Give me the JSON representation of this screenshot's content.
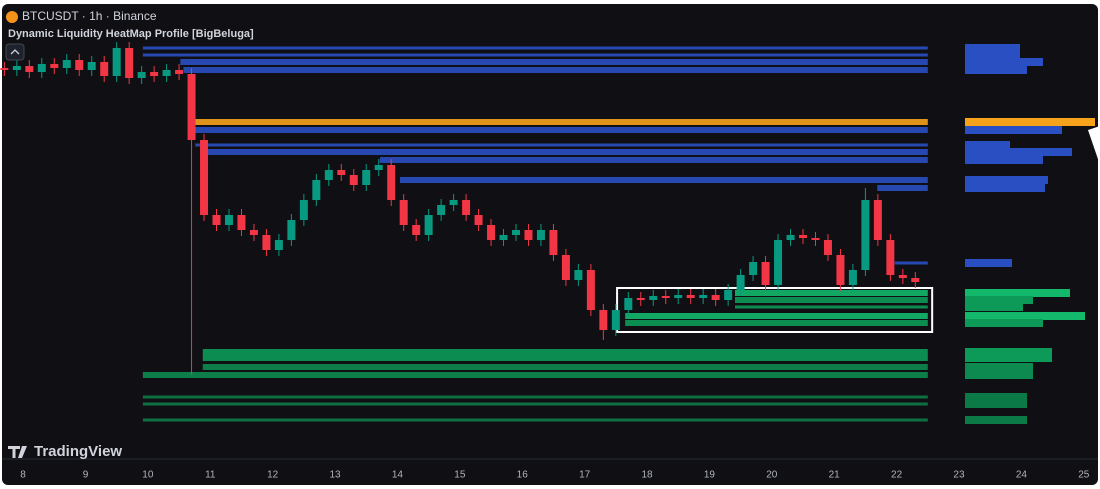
{
  "header": {
    "symbol": "BTCUSDT · 1h · Binance",
    "indicator": "Dynamic Liquidity HeatMap Profile [BigBeluga]",
    "brand": "TradingView"
  },
  "chart_data": [
    {
      "type": "candlestick",
      "x": [
        7.7,
        7.9,
        8.1,
        8.3,
        8.5,
        8.7,
        8.9,
        9.1,
        9.3,
        9.5,
        9.7,
        9.9,
        10.1,
        10.3,
        10.5,
        10.7,
        10.9,
        11.1,
        11.3,
        11.5,
        11.7,
        11.9,
        12.1,
        12.3,
        12.5,
        12.7,
        12.9,
        13.1,
        13.3,
        13.5,
        13.7,
        13.9,
        14.1,
        14.3,
        14.5,
        14.7,
        14.9,
        15.1,
        15.3,
        15.5,
        15.7,
        15.9,
        16.1,
        16.3,
        16.5,
        16.7,
        16.9,
        17.1,
        17.3,
        17.5,
        17.7,
        17.9,
        18.1,
        18.3,
        18.5,
        18.7,
        18.9,
        19.1,
        19.3,
        19.5,
        19.7,
        19.9,
        20.1,
        20.3,
        20.5,
        20.7,
        20.9,
        21.1,
        21.3,
        21.5,
        21.7,
        21.9,
        22.1,
        22.3
      ],
      "open": [
        93,
        92.5,
        93.5,
        92,
        94,
        93,
        95,
        92.5,
        94.5,
        91,
        98,
        90.5,
        92,
        91,
        92.5,
        91.5,
        75,
        56.25,
        53.75,
        56.25,
        52.5,
        51.25,
        47.5,
        50,
        55,
        60,
        65,
        67.5,
        66.25,
        63.75,
        67.5,
        68.75,
        60,
        53.75,
        51.25,
        56.25,
        58.75,
        60,
        56.25,
        53.75,
        50,
        51.25,
        52.5,
        50,
        52.5,
        46.25,
        40,
        42.5,
        32.5,
        27.5,
        32.5,
        35.5,
        35,
        36,
        35.5,
        36.25,
        35.5,
        36.25,
        35,
        37.5,
        41.25,
        44.5,
        38.75,
        50,
        51.25,
        50.5,
        50,
        46.25,
        38.75,
        42.5,
        60,
        50,
        41.25,
        40.5
      ],
      "high": [
        94.5,
        95,
        95,
        95.5,
        95.5,
        96.5,
        96.5,
        96,
        96,
        99.5,
        99.5,
        93.5,
        93.5,
        94,
        94,
        93,
        76.5,
        57.75,
        57.75,
        57.75,
        54,
        52.75,
        51.5,
        56.5,
        61.5,
        66.5,
        69,
        69,
        67.75,
        69,
        70.25,
        70.25,
        61.5,
        55.25,
        57.75,
        60.25,
        61.5,
        61.5,
        57.75,
        55.25,
        52.75,
        54,
        54,
        54,
        54,
        47.75,
        44,
        44,
        34,
        34,
        37,
        37,
        37.5,
        37.5,
        37.75,
        37.75,
        37.75,
        37.75,
        39,
        42.75,
        46,
        46,
        51.5,
        52.75,
        52.75,
        52,
        51.5,
        47.75,
        44,
        63,
        61.5,
        51.5,
        42.75,
        42
      ],
      "low": [
        91,
        91,
        90.5,
        90.5,
        91.5,
        91.5,
        91,
        91,
        89.5,
        89.5,
        89,
        89,
        89.5,
        89.5,
        90,
        16.25,
        54.75,
        52.25,
        52.25,
        51,
        49.75,
        46,
        46,
        48.5,
        53.5,
        58.5,
        63.5,
        64.75,
        62.25,
        62.25,
        66,
        58.5,
        52.25,
        49.75,
        49.75,
        54.75,
        57.25,
        54.75,
        52.25,
        48.5,
        48.5,
        49.75,
        48.5,
        48.5,
        44.75,
        38.5,
        38.5,
        31,
        25,
        26,
        31,
        33.5,
        33.5,
        34,
        34,
        34,
        34,
        33.5,
        33.5,
        36,
        39.75,
        37.25,
        37.25,
        48.5,
        49,
        48.5,
        44.75,
        37.25,
        37.25,
        41,
        48.5,
        39.75,
        39,
        38
      ],
      "close": [
        92.5,
        93.5,
        92,
        94,
        93,
        95,
        92.5,
        94.5,
        91,
        98,
        90.5,
        92,
        91,
        92.5,
        91.5,
        75,
        56.25,
        53.75,
        56.25,
        52.5,
        51.25,
        47.5,
        50,
        55,
        60,
        65,
        67.5,
        66.25,
        63.75,
        67.5,
        68.75,
        60,
        53.75,
        51.25,
        56.25,
        58.75,
        60,
        56.25,
        53.75,
        50,
        51.25,
        52.5,
        50,
        52.5,
        46.25,
        40,
        42.5,
        32.5,
        27.5,
        32.5,
        35.5,
        35,
        36,
        35.5,
        36.25,
        35.5,
        36.25,
        35,
        37.5,
        41.25,
        44.5,
        38.75,
        50,
        51.25,
        50.5,
        50,
        46.25,
        38.75,
        42.5,
        60,
        50,
        41.25,
        40.5,
        39.5
      ],
      "up_color": "#089981",
      "down_color": "#f23645",
      "xlim": [
        7.63,
        25.26
      ],
      "xticks": [
        8,
        9,
        10,
        11,
        12,
        13,
        14,
        15,
        16,
        17,
        18,
        19,
        20,
        21,
        22,
        23,
        24,
        25
      ],
      "ylim": [
        0,
        100
      ]
    },
    {
      "type": "liquidity-levels",
      "end": 22.5,
      "vlim": [
        0,
        140
      ],
      "box": {
        "xlim": [
          17.52,
          22.57
        ],
        "ylim": [
          27,
          38
        ],
        "color": "#ffffff"
      },
      "levels": [
        {
          "price": 98,
          "start": 9.92,
          "volume": 55,
          "color": "#2a4fc2",
          "thick": false
        },
        {
          "price": 96.25,
          "start": 9.92,
          "volume": 55,
          "color": "#2a4fc2",
          "thick": false
        },
        {
          "price": 94.5,
          "start": 10.52,
          "volume": 78,
          "color": "#2a4fc2",
          "thick": true
        },
        {
          "price": 92.5,
          "start": 10.57,
          "volume": 62,
          "color": "#2a4fc2",
          "thick": true
        },
        {
          "price": 79.5,
          "start": 10.72,
          "volume": 130,
          "color": "#f7a21b",
          "thick": true
        },
        {
          "price": 77.5,
          "start": 10.76,
          "volume": 97,
          "color": "#2a4fc2",
          "thick": true
        },
        {
          "price": 73.75,
          "start": 10.76,
          "volume": 45,
          "color": "#2a4fc2",
          "thick": false
        },
        {
          "price": 72,
          "start": 10.84,
          "volume": 107,
          "color": "#2a4fc2",
          "thick": true
        },
        {
          "price": 70,
          "start": 13.72,
          "volume": 78,
          "color": "#2a4fc2",
          "thick": true
        },
        {
          "price": 65,
          "start": 14.04,
          "volume": 83,
          "color": "#2a4fc2",
          "thick": true
        },
        {
          "price": 63,
          "start": 21.69,
          "volume": 80,
          "color": "#2a4fc2",
          "thick": true
        },
        {
          "price": 44.25,
          "start": 21.97,
          "volume": 47,
          "color": "#2a4fc2",
          "thick": false
        },
        {
          "price": 36.75,
          "start": 19.41,
          "volume": 105,
          "color": "#13b86a",
          "thick": true
        },
        {
          "price": 35,
          "start": 19.41,
          "volume": 68,
          "color": "#0d9a58",
          "thick": true
        },
        {
          "price": 33.25,
          "start": 19.41,
          "volume": 58,
          "color": "#0d9a58",
          "thick": false
        },
        {
          "price": 31,
          "start": 17.65,
          "volume": 120,
          "color": "#13b86a",
          "thick": true
        },
        {
          "price": 29.25,
          "start": 17.65,
          "volume": 78,
          "color": "#0d9a58",
          "thick": true
        },
        {
          "price": 22,
          "start": 10.88,
          "volume": 87,
          "color": "#0d9a58",
          "thick": true
        },
        {
          "price": 20.5,
          "start": 10.88,
          "volume": 87,
          "color": "#0d9a58",
          "thick": true
        },
        {
          "price": 18.25,
          "start": 10.88,
          "volume": 68,
          "color": "#0d8a50",
          "thick": true
        },
        {
          "price": 16.25,
          "start": 9.92,
          "volume": 68,
          "color": "#0d8a50",
          "thick": true
        },
        {
          "price": 10.75,
          "start": 9.92,
          "volume": 62,
          "color": "#0b7a46",
          "thick": false
        },
        {
          "price": 9,
          "start": 9.92,
          "volume": 62,
          "color": "#0b7a46",
          "thick": false
        },
        {
          "price": 5,
          "start": 9.92,
          "volume": 62,
          "color": "#0b7a46",
          "thick": false
        }
      ]
    }
  ]
}
